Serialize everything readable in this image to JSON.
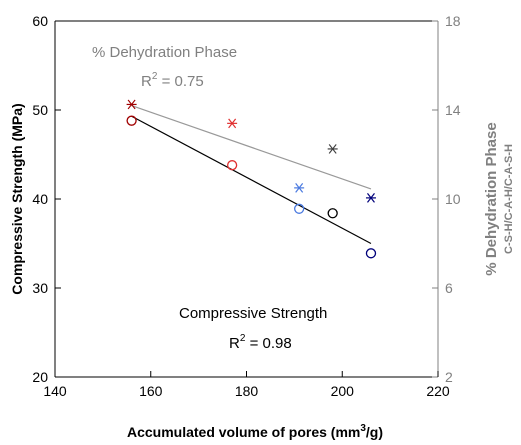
{
  "chart_data": {
    "type": "scatter",
    "xlabel": "Accumulated volume of pores   (mm",
    "xlabel_sup": "3",
    "xlabel_tail": "/g)",
    "ylabel": "Compressive Strength (MPa)",
    "y2label": "% Dehydration Phase",
    "y2label_sub": "C-S-H/C-A-H/C-A-S-H",
    "xlim": [
      140,
      220
    ],
    "ylim": [
      20,
      60
    ],
    "y2lim": [
      2,
      18
    ],
    "xticks": [
      "140",
      "160",
      "180",
      "200",
      "220"
    ],
    "yticks": [
      "20",
      "30",
      "40",
      "50",
      "60"
    ],
    "y2ticks": [
      "2",
      "6",
      "10",
      "14",
      "18"
    ],
    "series": [
      {
        "name": "Compressive Strength",
        "axis": "left",
        "marker": "circle",
        "x": [
          156,
          177,
          191,
          198,
          206
        ],
        "y": [
          48.8,
          43.8,
          38.9,
          38.4,
          33.9
        ],
        "colors": [
          "#a00000",
          "#e03030",
          "#4a7ae0",
          "#000000",
          "#00007a"
        ],
        "fit": {
          "x": [
            156,
            206
          ],
          "y": [
            49.3,
            35.0
          ],
          "color": "#000000"
        },
        "r2_label": "R",
        "r2_sup": "2",
        "r2_value": " = 0.98"
      },
      {
        "name": "% Dehydration Phase",
        "axis": "right",
        "marker": "asterisk",
        "x": [
          156,
          177,
          191,
          198,
          206
        ],
        "y": [
          14.25,
          13.4,
          10.5,
          12.25,
          10.05
        ],
        "colors": [
          "#a00000",
          "#e03030",
          "#4a7ae0",
          "#404040",
          "#00007a"
        ],
        "fit": {
          "x": [
            156,
            206
          ],
          "y": [
            14.2,
            10.45
          ],
          "color": "#999999"
        },
        "r2_label": "R",
        "r2_sup": "2",
        "r2_value": " = 0.75"
      }
    ],
    "grid": false
  }
}
